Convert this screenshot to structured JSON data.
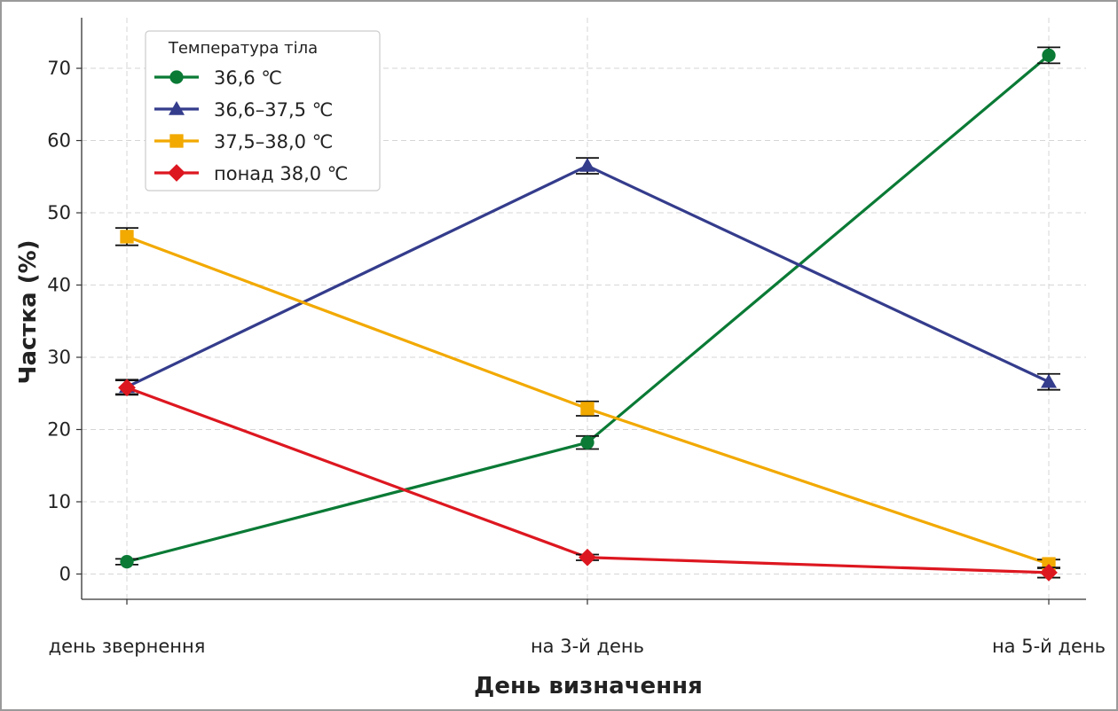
{
  "chart_data": {
    "type": "line",
    "xlabel": "День визначення",
    "ylabel": "Частка (%)",
    "ylim": [
      -3.5,
      77
    ],
    "yticks": [
      0,
      10,
      20,
      30,
      40,
      50,
      60,
      70
    ],
    "categories": [
      "день звернення",
      "на 3-й день",
      "на 5-й день"
    ],
    "grid": true,
    "legend": {
      "title": "Температура тіла",
      "position": "top-left"
    },
    "series": [
      {
        "name": "36,6 ℃",
        "values": [
          1.7,
          18.2,
          71.8
        ],
        "errors": [
          0.4,
          0.9,
          1.1
        ],
        "color": "#0a7a35",
        "marker": "circle"
      },
      {
        "name": "36,6–37,5 ℃",
        "values": [
          25.9,
          56.5,
          26.6
        ],
        "errors": [
          1.0,
          1.1,
          1.1
        ],
        "color": "#343c8c",
        "marker": "triangle"
      },
      {
        "name": "37,5–38,0 ℃",
        "values": [
          46.7,
          22.9,
          1.4
        ],
        "errors": [
          1.2,
          1.0,
          0.6
        ],
        "color": "#f2a900",
        "marker": "square"
      },
      {
        "name": "понад 38,0 ℃",
        "values": [
          25.8,
          2.3,
          0.2
        ],
        "errors": [
          1.0,
          0.4,
          0.7
        ],
        "color": "#dd1720",
        "marker": "diamond"
      }
    ]
  }
}
